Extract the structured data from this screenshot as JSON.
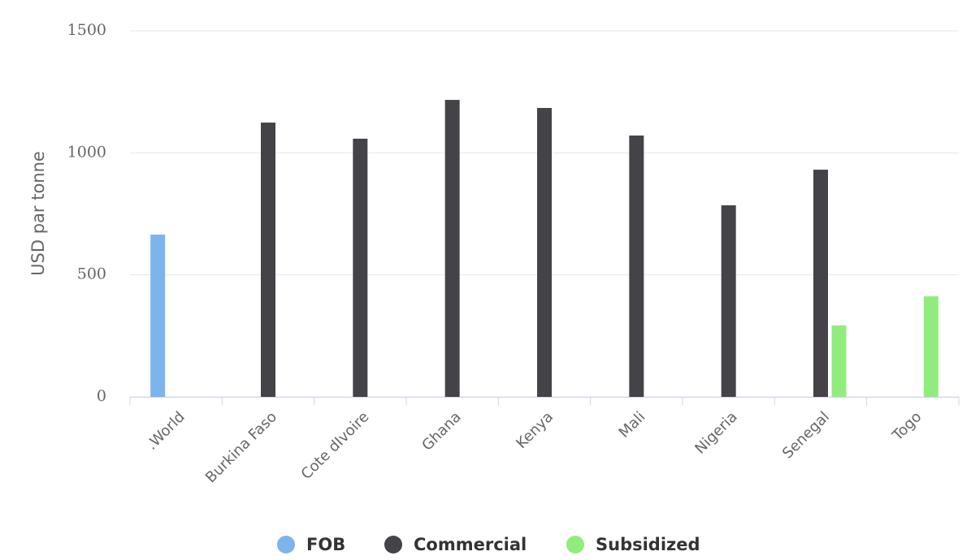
{
  "chart_data": {
    "type": "bar",
    "y_label": "USD par tonne",
    "categories": [
      ".World",
      "Burkina Faso",
      "Cote dIvoire",
      "Ghana",
      "Kenya",
      "Mali",
      "Nigeria",
      "Senegal",
      "Togo"
    ],
    "series": [
      {
        "name": "FOB",
        "color": "#7cb5ec",
        "values": [
          665,
          null,
          null,
          null,
          null,
          null,
          null,
          null,
          null
        ]
      },
      {
        "name": "Commercial",
        "color": "#434348",
        "values": [
          null,
          1124,
          1058,
          1217,
          1184,
          1071,
          785,
          931,
          null
        ]
      },
      {
        "name": "Subsidized",
        "color": "#90ed7d",
        "values": [
          null,
          null,
          null,
          null,
          null,
          null,
          null,
          293,
          412
        ]
      }
    ],
    "ylim": [
      0,
      1500
    ],
    "yticks": [
      0,
      500,
      1000,
      1500
    ],
    "grid": true
  }
}
